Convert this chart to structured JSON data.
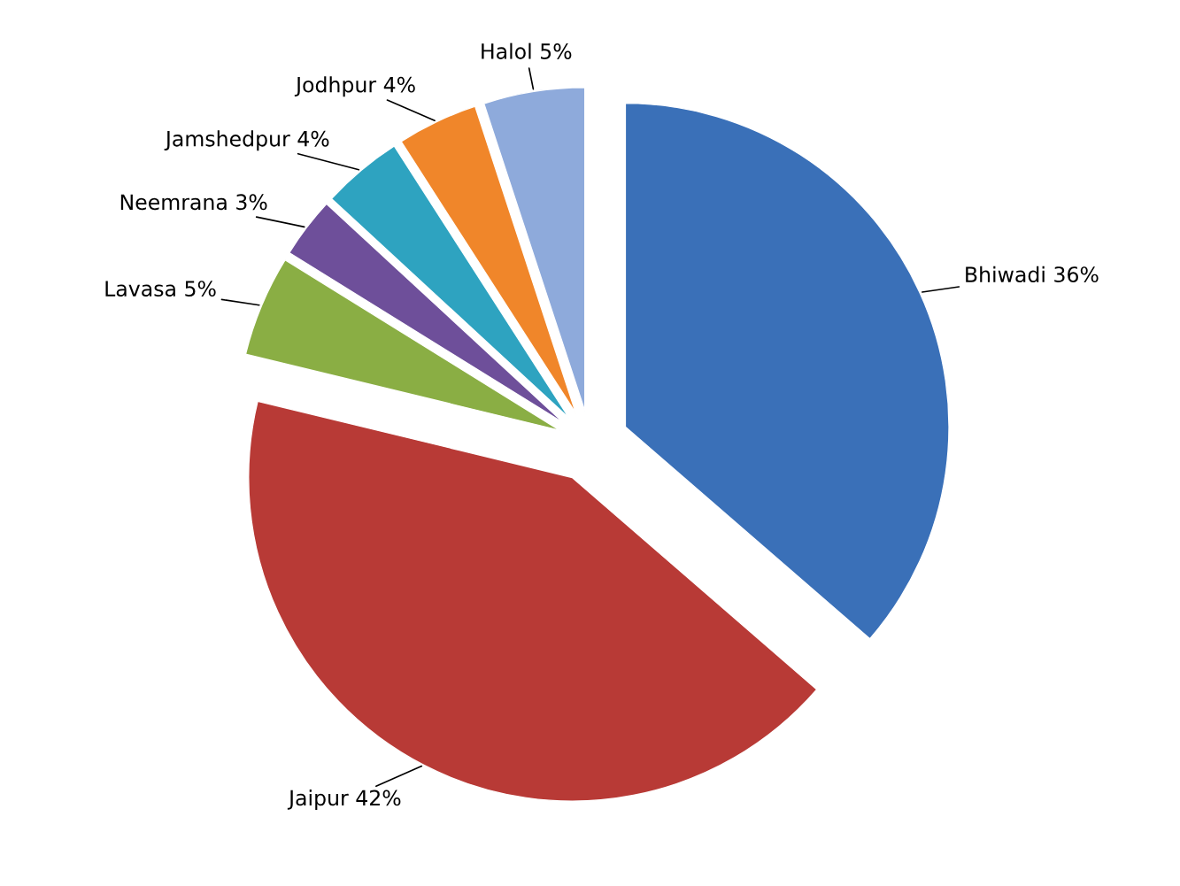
{
  "chart_data": {
    "type": "pie",
    "categories": [
      "Bhiwadi",
      "Jaipur",
      "Lavasa",
      "Neemrana",
      "Jamshedpur",
      "Jodhpur",
      "Halol"
    ],
    "values": [
      36,
      42,
      5,
      3,
      4,
      4,
      5
    ],
    "value_labels": [
      "36%",
      "42%",
      "5%",
      "3%",
      "4%",
      "4%",
      "5%"
    ],
    "colors": [
      "#3a70b8",
      "#b83a36",
      "#8aae44",
      "#6e4f9a",
      "#2ea3c0",
      "#f0862a",
      "#8eaadb"
    ],
    "legend": false
  }
}
